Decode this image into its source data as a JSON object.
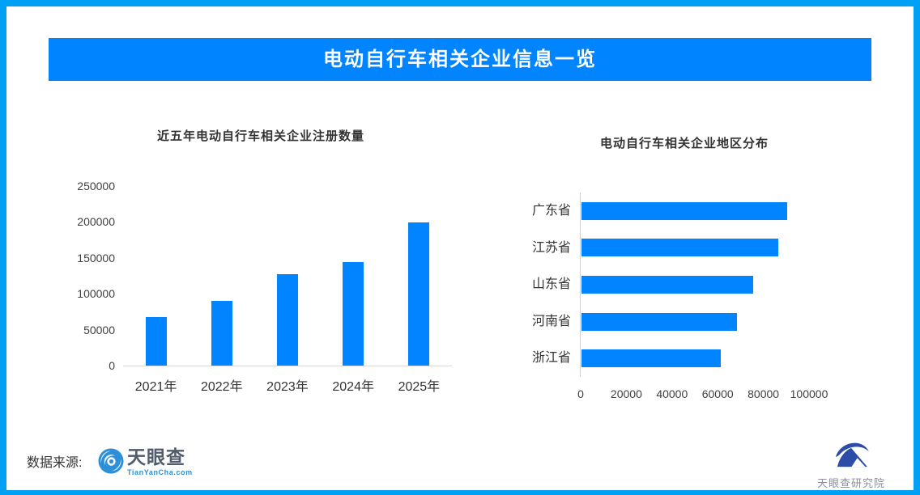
{
  "page": {
    "frame_color": "#00a0f5",
    "background": "#ffffff"
  },
  "header": {
    "title": "电动自行车相关企业信息一览",
    "bg_color": "#0084ff",
    "text_color": "#ffffff"
  },
  "chart_data": [
    {
      "type": "bar",
      "title": "近五年电动自行车相关企业注册数量",
      "categories": [
        "2021年",
        "2022年",
        "2023年",
        "2024年",
        "2025年"
      ],
      "values": [
        68000,
        90000,
        127000,
        144000,
        199000
      ],
      "xlabel": "",
      "ylabel": "",
      "ylim": [
        0,
        250000
      ],
      "yticks": [
        0,
        50000,
        100000,
        150000,
        200000,
        250000
      ],
      "bar_color": "#0084ff",
      "grid": false,
      "legend": false
    },
    {
      "type": "bar-horizontal",
      "title": "电动自行车相关企业地区分布",
      "categories": [
        "广东省",
        "江苏省",
        "山东省",
        "河南省",
        "浙江省"
      ],
      "values": [
        90000,
        86000,
        75000,
        68000,
        61000
      ],
      "xlabel": "",
      "ylabel": "",
      "xlim": [
        0,
        100000
      ],
      "xticks": [
        0,
        20000,
        40000,
        60000,
        80000,
        100000
      ],
      "bar_color": "#0084ff",
      "grid": false,
      "legend": false
    }
  ],
  "footer": {
    "source_label": "数据来源:",
    "tianyancha": {
      "name": "天眼查",
      "domain": "TianYanCha.com",
      "brand_color": "#2d8fd8",
      "name_color": "#515d6b"
    },
    "research": {
      "name": "天眼查研究院",
      "brand_color": "#2b4da8",
      "name_color": "#8a8f99"
    }
  }
}
